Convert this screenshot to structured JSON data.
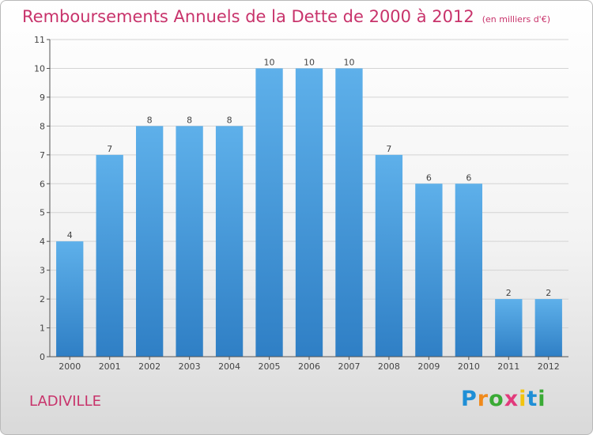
{
  "title": "Remboursements Annuels de la Dette de 2000 à 2012",
  "unit": "(en milliers d'€)",
  "town": "LADIVILLE",
  "logo": {
    "text": "Proxiti",
    "letters": [
      {
        "ch": "P",
        "color": "#1f8fd6"
      },
      {
        "ch": "r",
        "color": "#f08a1c"
      },
      {
        "ch": "o",
        "color": "#3aaa35"
      },
      {
        "ch": "x",
        "color": "#e23a7c"
      },
      {
        "ch": "i",
        "color": "#f2c40f"
      },
      {
        "ch": "t",
        "color": "#1f8fd6"
      },
      {
        "ch": "i",
        "color": "#3aaa35"
      }
    ]
  },
  "colors": {
    "title": "#c8336b",
    "bar_top": "#5eb0ea",
    "bar_bottom": "#2f7fc5",
    "grid": "#d4d4d4"
  },
  "chart_data": {
    "type": "bar",
    "categories": [
      "2000",
      "2001",
      "2002",
      "2003",
      "2004",
      "2005",
      "2006",
      "2007",
      "2008",
      "2009",
      "2010",
      "2011",
      "2012"
    ],
    "values": [
      4,
      7,
      8,
      8,
      8,
      10,
      10,
      10,
      7,
      6,
      6,
      2,
      2
    ],
    "yticks": [
      0,
      1,
      2,
      3,
      4,
      5,
      6,
      7,
      8,
      9,
      10,
      11
    ],
    "ylim": [
      0,
      11
    ],
    "grid": true,
    "data_labels": true
  }
}
